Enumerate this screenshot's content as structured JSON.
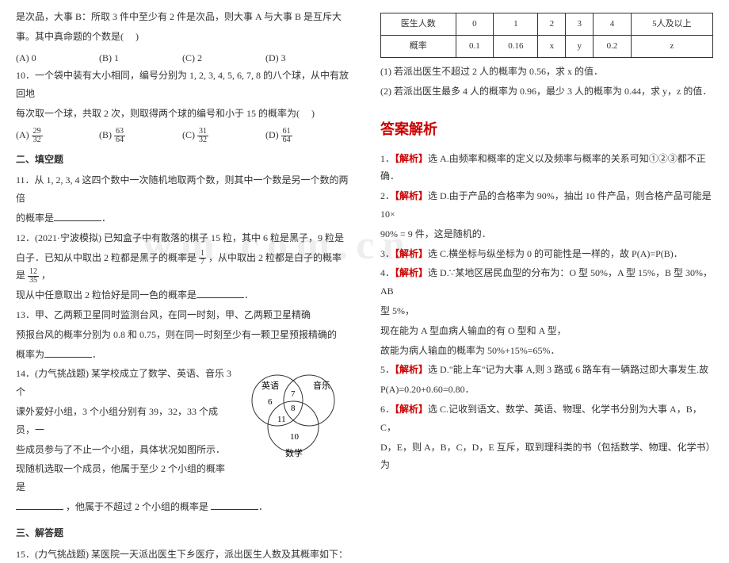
{
  "watermark_text": "wm.com.cn",
  "colors": {
    "text": "#333333",
    "accent": "#cc0000",
    "watermark": "#eeeeee",
    "border": "#333333",
    "bg": "#ffffff"
  },
  "fonts": {
    "body_size": 12,
    "header_size": 18
  },
  "left": {
    "q_intro1": "是次品，大事 B：所取 3 件中至少有 2 件是次品，则大事 A 与大事 B 是互斥大",
    "q_intro2": "事。其中真命题的个数是(　 )",
    "q_options_ab": {
      "a": "(A) 0",
      "b": "(B) 1",
      "c": "(C) 2",
      "d": "(D) 3"
    },
    "q10_l1": "10．一个袋中装有大小相同，编号分别为 1, 2, 3, 4, 5, 6, 7, 8 的八个球，从中有放回地",
    "q10_l2": "每次取一个球，共取 2 次，则取得两个球的编号和小于 15 的概率为(　 )",
    "q10_opts": {
      "a": "(A)",
      "a_num": "29",
      "a_den": "32",
      "b": "(B)",
      "b_num": "63",
      "b_den": "64",
      "c": "(C)",
      "c_num": "31",
      "c_den": "32",
      "d": "(D)",
      "d_num": "61",
      "d_den": "64"
    },
    "fill_header": "二、填空题",
    "q11_l1": "11．从 1, 2, 3, 4 这四个数中一次随机地取两个数，则其中一个数是另一个数的两倍",
    "q11_l2": "的概率是",
    "q12_l1": "12．(2021·宁波模拟) 已知盒子中有散落的棋子 15 粒，其中 6 粒是黑子，9 粒是",
    "q12_l2a": "白子．已知从中取出 2 粒都是黑子的概率是",
    "q12_f1_num": "1",
    "q12_f1_den": "7",
    "q12_l2b": "，从中取出 2 粒都是白子的概率是",
    "q12_f2_num": "12",
    "q12_f2_den": "35",
    "q12_l2c": "，",
    "q12_l3": "现从中任意取出 2 粒恰好是同一色的概率是",
    "q13_l1": "13．甲、乙两颗卫星同时监测台风，在同一时刻，甲、乙两颗卫星精确",
    "q13_l2": "预报台风的概率分别为 0.8 和 0.75，则在同一时刻至少有一颗卫星预报精确的",
    "q13_l3": "概率为",
    "q14_l1": "14．(力气挑战题) 某学校成立了数学、英语、音乐 3 个",
    "q14_l2": "课外爱好小组，3 个小组分别有 39，32，33 个成员，一",
    "q14_l3": "些成员参与了不止一个小组，具体状况如图所示．",
    "q14_l4": "现随机选取一个成员，他属于至少 2 个小组的概率是",
    "q14_l5_pre": "",
    "q14_l5_mid": "，他属于不超过 2 个小组的概率是",
    "jieti_header": "三、解答题",
    "q15_l1": "15．(力气挑战题) 某医院一天派出医生下乡医疗，派出医生人数及其概率如下：",
    "venn": {
      "labels": {
        "left": "英语",
        "right": "音乐",
        "bottom": "数学"
      },
      "values": {
        "left_only": "6",
        "right_only": "",
        "bottom_only": "10",
        "left_right": "7",
        "left_bottom": "11",
        "right_bottom": "",
        "center": "8"
      },
      "stroke": "#333333"
    }
  },
  "right": {
    "table": {
      "headers": [
        "医生人数",
        "0",
        "1",
        "2",
        "3",
        "4",
        "5人及以上"
      ],
      "row2": [
        "概率",
        "0.1",
        "0.16",
        "x",
        "y",
        "0.2",
        "z"
      ]
    },
    "sub1": "(1) 若派出医生不超过 2 人的概率为 0.56，求 x 的值．",
    "sub2": "(2) 若派出医生最多 4 人的概率为 0.96，最少 3 人的概率为 0.44，求 y，z 的值．",
    "ans_header": "答案解析",
    "a1": "1．【解析】选 A.由频率和概率的定义以及频率与概率的关系可知①②③都不正确．",
    "a2_l1": "2．【解析】选 D.由于产品的合格率为 90%，抽出 10 件产品，则合格产品可能是 10×",
    "a2_l2": "90% = 9 件，这是随机的．",
    "a3": "3．【解析】选 C.横坐标与纵坐标为 0 的可能性是一样的，故 P(A)=P(B)．",
    "a4_l1": "4．【解析】选 D.∵某地区居民血型的分布为：O 型 50%，A 型 15%，B 型 30%，AB",
    "a4_l2": "型 5%，",
    "a4_l3": "现在能为 A 型血病人输血的有 O 型和 A 型，",
    "a4_l4": "故能为病人输血的概率为 50%+15%=65%．",
    "a5_l1": "5．【解析】选 D.\"能上车\"记为大事 A,则 3 路或 6 路车有一辆路过即大事发生.故",
    "a5_l2": "P(A)=0.20+0.60=0.80．",
    "a6_l1": "6．【解析】选 C.记收到语文、数学、英语、物理、化学书分别为大事 A，B，C，",
    "a6_l2": "D，E，则 A，B，C，D，E 互斥，取到理科类的书（包括数学、物理、化学书）为"
  }
}
